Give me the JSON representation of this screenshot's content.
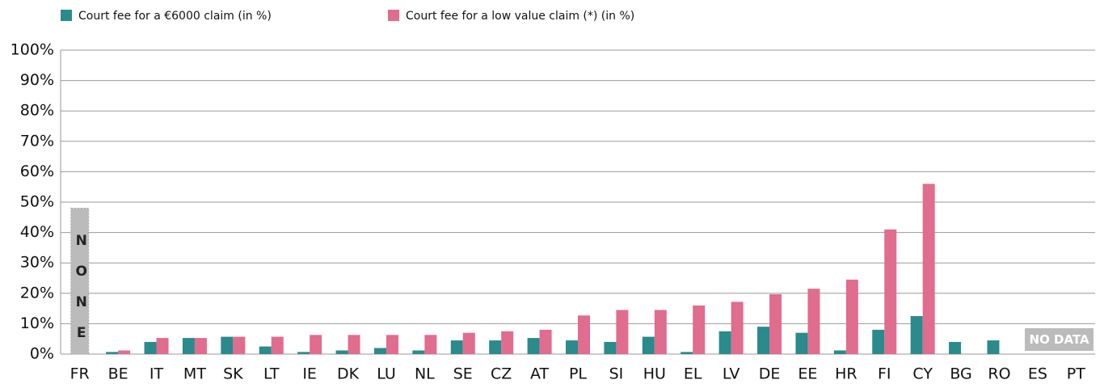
{
  "chart_data": {
    "type": "bar",
    "categories": [
      "FR",
      "BE",
      "IT",
      "MT",
      "SK",
      "LT",
      "IE",
      "DK",
      "LU",
      "NL",
      "SE",
      "CZ",
      "AT",
      "PL",
      "SI",
      "HU",
      "EL",
      "LV",
      "DE",
      "EE",
      "HR",
      "FI",
      "CY",
      "BG",
      "RO",
      "ES",
      "PT"
    ],
    "series": [
      {
        "name": "Court fee for a €6000 claim (in %)",
        "color": "#2a8a8c",
        "values": [
          null,
          0.7,
          4,
          5.3,
          5.7,
          2.5,
          0.7,
          1.2,
          2,
          1.2,
          4.5,
          4.5,
          5.3,
          4.5,
          4,
          5.7,
          0.7,
          7.5,
          9,
          7,
          1.2,
          8,
          12.5,
          4,
          4.5,
          null,
          null
        ]
      },
      {
        "name": "Court fee for a low value claim (*) (in %)",
        "color": "#e06c8e",
        "values": [
          null,
          1.2,
          5.3,
          5.3,
          5.7,
          5.7,
          6.3,
          6.3,
          6.3,
          6.3,
          7,
          7.5,
          8,
          12.7,
          14.5,
          14.5,
          16,
          17.2,
          19.7,
          21.5,
          24.5,
          41,
          56,
          null,
          null,
          null,
          null
        ]
      }
    ],
    "ylim": [
      0,
      100
    ],
    "yticks": [
      {
        "value": 0,
        "label": "0%"
      },
      {
        "value": 10,
        "label": "10%"
      },
      {
        "value": 20,
        "label": "20%"
      },
      {
        "value": 30,
        "label": "30%"
      },
      {
        "value": 40,
        "label": "40%"
      },
      {
        "value": 50,
        "label": "50%"
      },
      {
        "value": 60,
        "label": "60%"
      },
      {
        "value": 70,
        "label": "70%"
      },
      {
        "value": 80,
        "label": "80%"
      },
      {
        "value": 90,
        "label": "90%"
      },
      {
        "value": 100,
        "label": "100%"
      }
    ],
    "grid": true,
    "annotations": [
      {
        "text": "NONE",
        "value": 48
      },
      {
        "text": "NO DATA"
      }
    ]
  }
}
